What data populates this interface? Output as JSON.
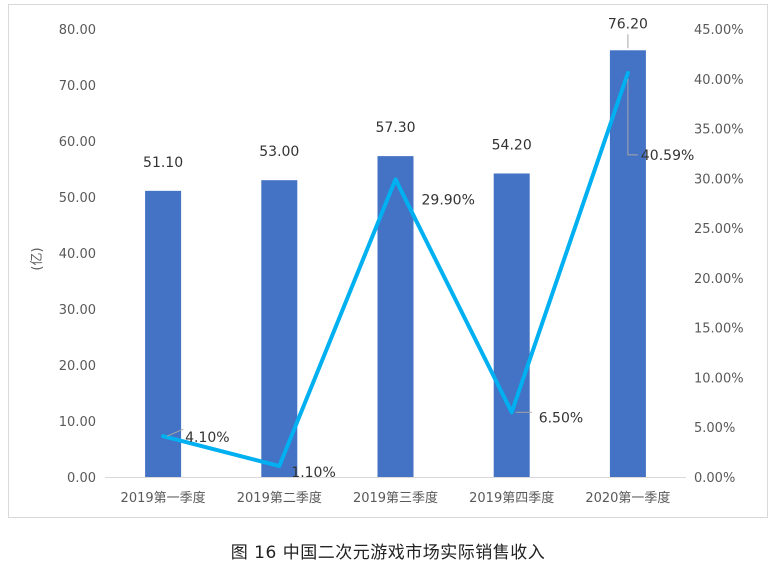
{
  "chart_data": {
    "type": "bar",
    "categories": [
      "2019第一季度",
      "2019第二季度",
      "2019第三季度",
      "2019第四季度",
      "2020第一季度"
    ],
    "ylabel": "(亿)",
    "ylim": [
      0,
      80
    ],
    "y_ticks": [
      "0.00",
      "10.00",
      "20.00",
      "30.00",
      "40.00",
      "50.00",
      "60.00",
      "70.00",
      "80.00"
    ],
    "y2lim": [
      0,
      45
    ],
    "y2_ticks": [
      "0.00%",
      "5.00%",
      "10.00%",
      "15.00%",
      "20.00%",
      "25.00%",
      "30.00%",
      "35.00%",
      "40.00%",
      "45.00%"
    ],
    "series": [
      {
        "type": "bar",
        "axis": "left",
        "values": [
          51.1,
          53.0,
          57.3,
          54.2,
          76.2
        ],
        "labels": [
          "51.10",
          "53.00",
          "57.30",
          "54.20",
          "76.20"
        ],
        "color": "#4472c4"
      },
      {
        "type": "line",
        "axis": "right",
        "values": [
          4.1,
          1.1,
          29.9,
          6.5,
          40.59
        ],
        "labels": [
          "4.10%",
          "1.10%",
          "29.90%",
          "6.50%",
          "40.59%"
        ],
        "color": "#00b0f0"
      }
    ],
    "grid": false,
    "legend": "none"
  },
  "caption": {
    "figure_no": "图 16",
    "title": "中国二次元游戏市场实际销售收入"
  }
}
